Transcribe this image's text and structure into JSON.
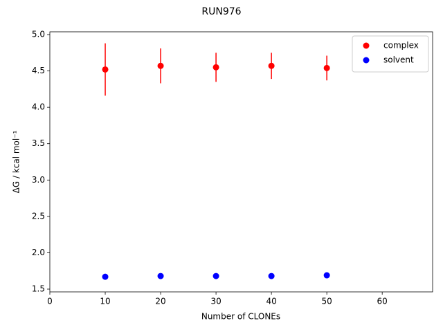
{
  "chart_data": {
    "type": "scatter",
    "title": "RUN976",
    "xlabel": "Number of CLONEs",
    "ylabel": "ΔG / kcal mol⁻¹",
    "x": [
      10,
      20,
      30,
      40,
      50
    ],
    "series": [
      {
        "name": "complex",
        "color": "#ff0000",
        "values": [
          4.52,
          4.57,
          4.55,
          4.57,
          4.54
        ],
        "errors": [
          0.36,
          0.24,
          0.2,
          0.18,
          0.17
        ]
      },
      {
        "name": "solvent",
        "color": "#0000ff",
        "values": [
          1.67,
          1.68,
          1.68,
          1.68,
          1.69
        ],
        "errors": [
          0.01,
          0.01,
          0.01,
          0.01,
          0.01
        ]
      }
    ],
    "xlim": [
      0,
      69.1
    ],
    "xticks": [
      0,
      10,
      20,
      30,
      40,
      50,
      60
    ],
    "ylim": [
      1.462,
      5.038
    ],
    "yticks": [
      1.5,
      {
        "value": 2,
        "label": "2.0"
      },
      2.5,
      {
        "value": 3,
        "label": "3.0"
      },
      3.5,
      {
        "value": 4,
        "label": "4.0"
      },
      4.5,
      {
        "value": 5,
        "label": "5.0"
      }
    ],
    "legend": "upper right"
  }
}
